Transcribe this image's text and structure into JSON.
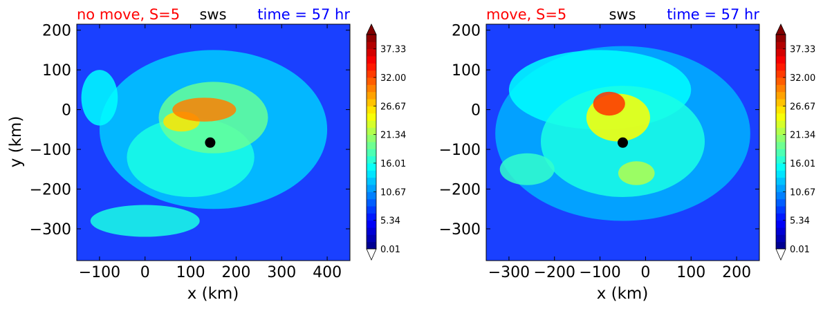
{
  "colors": {
    "title_left": "#ff0000",
    "title_mid": "#000000",
    "title_right": "#0000ff",
    "marker": "#000000"
  },
  "colorbar_ticks": [
    "0.01",
    "5.34",
    "10.67",
    "16.01",
    "21.34",
    "26.67",
    "32.00",
    "37.33"
  ],
  "chart_data": [
    {
      "type": "heatmap",
      "title_left": "no move, S=5",
      "title_mid": "sws",
      "title_right": "time = 57 hr",
      "xlabel": "x (km)",
      "ylabel": "y (km)",
      "xlim": [
        -150,
        450
      ],
      "ylim": [
        -380,
        215
      ],
      "xticks": [
        -100,
        0,
        100,
        200,
        300,
        400
      ],
      "xtick_labels": [
        "−100",
        "0",
        "100",
        "200",
        "300",
        "400"
      ],
      "yticks": [
        200,
        100,
        0,
        -100,
        -200,
        -300
      ],
      "ytick_labels": [
        "200",
        "100",
        "0",
        "−100",
        "−200",
        "−300"
      ],
      "center_marker": {
        "x": 143,
        "y": -83
      },
      "colorbar": {
        "min": 0.01,
        "max": 40,
        "ticks": [
          0.01,
          5.34,
          10.67,
          16.01,
          21.34,
          26.67,
          32.0,
          37.33
        ]
      },
      "field_features": [
        {
          "x": 130,
          "y": 0,
          "sx": 70,
          "sy": 30,
          "value": 30
        },
        {
          "x": 80,
          "y": -30,
          "sx": 40,
          "sy": 25,
          "value": 26
        },
        {
          "x": 150,
          "y": -20,
          "sx": 120,
          "sy": 90,
          "value": 19
        },
        {
          "x": 100,
          "y": -120,
          "sx": 140,
          "sy": 100,
          "value": 16
        },
        {
          "x": 0,
          "y": -280,
          "sx": 120,
          "sy": 40,
          "value": 16
        },
        {
          "x": -100,
          "y": 30,
          "sx": 40,
          "sy": 70,
          "value": 15
        },
        {
          "x": 150,
          "y": -50,
          "sx": 250,
          "sy": 200,
          "value": 13
        }
      ]
    },
    {
      "type": "heatmap",
      "title_left": "move, S=5",
      "title_mid": "sws",
      "title_right": "time = 57 hr",
      "xlabel": "x (km)",
      "ylabel": "",
      "xlim": [
        -350,
        250
      ],
      "ylim": [
        -380,
        215
      ],
      "xticks": [
        -300,
        -200,
        -100,
        0,
        100,
        200
      ],
      "xtick_labels": [
        "−300",
        "−200",
        "−100",
        "0",
        "100",
        "200"
      ],
      "yticks": [
        200,
        100,
        0,
        -100,
        -200,
        -300
      ],
      "ytick_labels": [
        "200",
        "100",
        "0",
        "−100",
        "−200",
        "−300"
      ],
      "center_marker": {
        "x": -50,
        "y": -83
      },
      "colorbar": {
        "min": 0.01,
        "max": 40,
        "ticks": [
          0.01,
          5.34,
          10.67,
          16.01,
          21.34,
          26.67,
          32.0,
          37.33
        ]
      },
      "field_features": [
        {
          "x": -80,
          "y": 15,
          "sx": 35,
          "sy": 30,
          "value": 33
        },
        {
          "x": -60,
          "y": -20,
          "sx": 70,
          "sy": 60,
          "value": 25
        },
        {
          "x": -20,
          "y": -160,
          "sx": 40,
          "sy": 30,
          "value": 22
        },
        {
          "x": -260,
          "y": -150,
          "sx": 60,
          "sy": 40,
          "value": 17
        },
        {
          "x": -50,
          "y": -80,
          "sx": 180,
          "sy": 140,
          "value": 16
        },
        {
          "x": -100,
          "y": 50,
          "sx": 200,
          "sy": 100,
          "value": 15
        },
        {
          "x": -50,
          "y": -60,
          "sx": 280,
          "sy": 220,
          "value": 12
        }
      ]
    }
  ]
}
